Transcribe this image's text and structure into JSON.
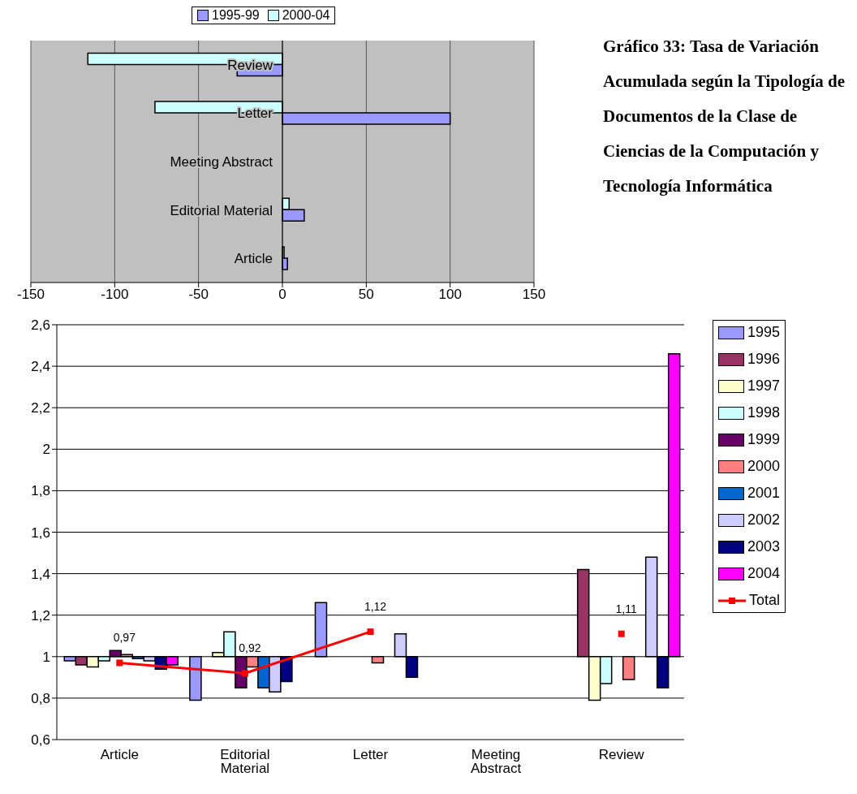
{
  "chart_data": [
    {
      "type": "bar",
      "orientation": "horizontal",
      "categories": [
        "Review",
        "Letter",
        "Meeting Abstract",
        "Editorial Material",
        "Article"
      ],
      "series": [
        {
          "name": "1995-99",
          "color": "#9999ff",
          "values": [
            -27,
            100,
            null,
            13,
            3
          ]
        },
        {
          "name": "2000-04",
          "color": "#ccffff",
          "values": [
            -116,
            -76,
            null,
            4,
            1
          ]
        }
      ],
      "xlim": [
        -150,
        150
      ],
      "xticks": [
        -150,
        -100,
        -50,
        0,
        50,
        100,
        150
      ],
      "grid": "x",
      "legend": "top"
    },
    {
      "type": "other",
      "title": "Gráfico 33: Tasa de Variación Acumulada según la Tipología de Documentos de la Clase de Ciencias de la Computación y Tecnología Informática"
    },
    {
      "type": "bar",
      "categories": [
        "Article",
        "Editorial Material",
        "Letter",
        "Meeting Abstract",
        "Review"
      ],
      "series": [
        {
          "name": "1995",
          "color": "#9999ff",
          "base": [
            1,
            1,
            1,
            null,
            null
          ],
          "values": [
            -0.02,
            -0.21,
            0.26,
            null,
            null
          ]
        },
        {
          "name": "1996",
          "color": "#993366",
          "base": [
            1,
            null,
            null,
            null,
            1
          ],
          "values": [
            -0.04,
            null,
            null,
            null,
            0.42
          ]
        },
        {
          "name": "1997",
          "color": "#ffffcc",
          "base": [
            1,
            1,
            null,
            null,
            1
          ],
          "values": [
            -0.05,
            0.02,
            null,
            null,
            -0.21
          ]
        },
        {
          "name": "1998",
          "color": "#ccffff",
          "base": [
            1,
            1,
            null,
            null,
            1
          ],
          "values": [
            -0.02,
            0.12,
            null,
            null,
            -0.13
          ]
        },
        {
          "name": "1999",
          "color": "#660066",
          "base": [
            1,
            1,
            null,
            null,
            null
          ],
          "values": [
            0.03,
            -0.15,
            null,
            null,
            null
          ]
        },
        {
          "name": "2000",
          "color": "#ff8080",
          "base": [
            1,
            1,
            1,
            null,
            1
          ],
          "values": [
            0.01,
            -0.05,
            -0.03,
            null,
            -0.11
          ]
        },
        {
          "name": "2001",
          "color": "#0066cc",
          "base": [
            1,
            1,
            null,
            null,
            null
          ],
          "values": [
            -0.01,
            -0.15,
            null,
            null,
            null
          ]
        },
        {
          "name": "2002",
          "color": "#ccccff",
          "base": [
            1,
            1,
            1,
            null,
            1
          ],
          "values": [
            -0.02,
            -0.17,
            0.11,
            null,
            0.48
          ]
        },
        {
          "name": "2003",
          "color": "#000080",
          "base": [
            1,
            1,
            1,
            null,
            1
          ],
          "values": [
            -0.06,
            -0.12,
            -0.1,
            null,
            -0.15
          ]
        },
        {
          "name": "2004",
          "color": "#ff00ff",
          "base": [
            1,
            null,
            null,
            null,
            1
          ],
          "values": [
            -0.04,
            null,
            null,
            null,
            1.46
          ]
        },
        {
          "name": "Total",
          "type": "line",
          "color": "#ff0000",
          "marker": "square",
          "line_style": "solid",
          "values": [
            0.97,
            0.92,
            1.12,
            null,
            1.11
          ],
          "value_labels": [
            "0,97",
            "0,92",
            "1,12",
            null,
            "1,11"
          ]
        }
      ],
      "ylim": [
        0.6,
        2.6
      ],
      "yticks": [
        {
          "value": 0.6,
          "label": "0,6"
        },
        {
          "value": 0.8,
          "label": "0,8"
        },
        1,
        {
          "value": 1.2,
          "label": "1,2"
        },
        {
          "value": 1.4,
          "label": "1,4"
        },
        {
          "value": 1.6,
          "label": "1,6"
        },
        {
          "value": 1.8,
          "label": "1,8"
        },
        2,
        {
          "value": 2.2,
          "label": "2,2"
        },
        {
          "value": 2.4,
          "label": "2,4"
        },
        {
          "value": 2.6,
          "label": "2,6"
        }
      ],
      "grid": "y",
      "legend": "right"
    }
  ]
}
